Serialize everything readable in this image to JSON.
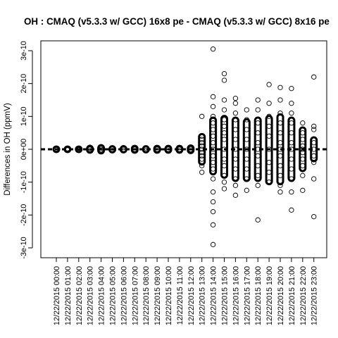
{
  "chart_data": {
    "type": "scatter",
    "title": "OH : CMAQ (v5.3.3 w/ GCC) 16x8 pe - CMAQ (v5.3.3 w/ GCC) 8x16 pe",
    "ylabel": "Differences in OH (ppmV)",
    "xlabel": "",
    "ylim": [
      -3.3e-10,
      3.3e-10
    ],
    "y_ticks": [
      -3e-10,
      -2e-10,
      -1e-10,
      0,
      1e-10,
      2e-10,
      3e-10
    ],
    "y_tick_labels": [
      "-3e-10",
      "-2e-10",
      "-1e-10",
      "0e+00",
      "1e-10",
      "2e-10",
      "3e-10"
    ],
    "categories": [
      "12/22/2015 00:00",
      "12/22/2015 01:00",
      "12/22/2015 02:00",
      "12/22/2015 03:00",
      "12/22/2015 04:00",
      "12/22/2015 05:00",
      "12/22/2015 06:00",
      "12/22/2015 07:00",
      "12/22/2015 08:00",
      "12/22/2015 09:00",
      "12/22/2015 10:00",
      "12/22/2015 11:00",
      "12/22/2015 12:00",
      "12/22/2015 13:00",
      "12/22/2015 14:00",
      "12/22/2015 15:00",
      "12/22/2015 16:00",
      "12/22/2015 17:00",
      "12/22/2015 18:00",
      "12/22/2015 19:00",
      "12/22/2015 20:00",
      "12/22/2015 21:00",
      "12/22/2015 22:00",
      "12/22/2015 23:00"
    ],
    "series": [
      {
        "points_by_category": [
          [
            0.0,
            1e-12,
            -1e-12
          ],
          [
            0.0,
            2e-12,
            -2e-12
          ],
          [
            0.0,
            3e-12,
            -2e-12
          ],
          [
            0.0,
            6e-12,
            -5e-12,
            3e-12
          ],
          [
            0.0,
            8e-12,
            -7e-12,
            4e-12,
            -3e-12
          ],
          [
            0.0,
            4e-12,
            -4e-12
          ],
          [
            0.0,
            5e-12,
            -4e-12
          ],
          [
            0.0,
            5e-12,
            -5e-12
          ],
          [
            0.0,
            4e-12,
            -4e-12
          ],
          [
            0.0,
            5e-12,
            -4e-12
          ],
          [
            0.0,
            5e-12,
            -5e-12
          ],
          [
            0.0,
            5e-12,
            -5e-12
          ],
          [
            0.0,
            6e-12,
            -6e-12
          ],
          [
            1e-10,
            4e-11,
            3e-11,
            2e-11,
            1e-11,
            0.0,
            -1e-11,
            -2e-11,
            -3e-11,
            -5e-11,
            -7e-11
          ],
          [
            3.05e-10,
            1.6e-10,
            1.3e-10,
            1e-10,
            8e-11,
            6e-11,
            4e-11,
            2e-11,
            0.0,
            -2e-11,
            -4e-11,
            -6e-11,
            -9e-11,
            -1.3e-10,
            -1.6e-10,
            -1.9e-10,
            -2.3e-10,
            -2.9e-10
          ],
          [
            2.3e-10,
            2.1e-10,
            1.5e-10,
            1.2e-10,
            9e-11,
            7e-11,
            5e-11,
            3e-11,
            0.0,
            -3e-11,
            -5e-11,
            -8e-11,
            -1e-10,
            -1.2e-10
          ],
          [
            1.55e-10,
            1.4e-10,
            1.1e-10,
            9e-11,
            6e-11,
            3e-11,
            0.0,
            -3e-11,
            -6e-11,
            -9e-11,
            -1.1e-10,
            -1.4e-10
          ],
          [
            1.2e-10,
            9e-11,
            6e-11,
            3e-11,
            0.0,
            -3e-11,
            -6e-11,
            -9e-11,
            -1.25e-10
          ],
          [
            1.5e-10,
            1.2e-10,
            8e-11,
            5e-11,
            2e-11,
            0.0,
            -2e-11,
            -5e-11,
            -8e-11,
            -1.1e-10,
            -2.15e-10
          ],
          [
            1.97e-10,
            1.4e-10,
            1e-10,
            7e-11,
            4e-11,
            0.0,
            -4e-11,
            -7e-11,
            -1e-10
          ],
          [
            1.88e-10,
            1.5e-10,
            1.1e-10,
            8e-11,
            5e-11,
            2e-11,
            0.0,
            -2e-11,
            -5e-11,
            -8e-11,
            -1.1e-10,
            -1.3e-10
          ],
          [
            1.85e-10,
            1.4e-10,
            1.1e-10,
            8e-11,
            5e-11,
            2e-11,
            0.0,
            -3e-11,
            -6e-11,
            -9e-11,
            -1.3e-10,
            -1.85e-10
          ],
          [
            8e-11,
            5e-11,
            3e-11,
            1e-11,
            0.0,
            -1e-11,
            -3e-11,
            -5e-11,
            -8e-11,
            -1.25e-10
          ],
          [
            2.2e-10,
            7e-11,
            6e-11,
            2e-11,
            0.0,
            -2e-11,
            -4e-11,
            -9e-11,
            -2.05e-10
          ]
        ],
        "range_by_category": [
          [
            -2e-12,
            2e-12
          ],
          [
            -2e-12,
            2e-12
          ],
          [
            -2e-12,
            2e-12
          ],
          [
            -4e-12,
            4e-12
          ],
          [
            -6e-12,
            6e-12
          ],
          [
            -3e-12,
            3e-12
          ],
          [
            -3e-12,
            3e-12
          ],
          [
            -4e-12,
            4e-12
          ],
          [
            -3e-12,
            3e-12
          ],
          [
            -4e-12,
            4e-12
          ],
          [
            -4e-12,
            4e-12
          ],
          [
            -4e-12,
            4e-12
          ],
          [
            -5e-12,
            5e-12
          ],
          [
            -4e-11,
            4e-11
          ],
          [
            -7e-11,
            9e-11
          ],
          [
            -8e-11,
            9.5e-11
          ],
          [
            -9e-11,
            9e-11
          ],
          [
            -9e-11,
            8.5e-11
          ],
          [
            -9e-11,
            9e-11
          ],
          [
            -1e-10,
            9.5e-11
          ],
          [
            -1e-10,
            1e-10
          ],
          [
            -9e-11,
            9e-11
          ],
          [
            -6e-11,
            6e-11
          ],
          [
            -3e-11,
            3e-11
          ]
        ]
      }
    ],
    "reference_line": 0,
    "grid": false,
    "colors": {
      "points": "#000000",
      "axes": "#000000",
      "background": "#ffffff"
    }
  }
}
